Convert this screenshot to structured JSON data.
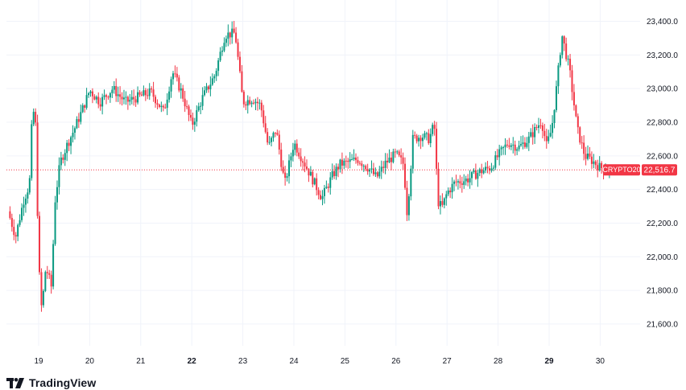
{
  "chart_data": {
    "type": "candlestick",
    "symbol": "CRYPTO20",
    "last_price": "22,516.7",
    "last_value": 22516.7,
    "ylim": [
      21480,
      23460
    ],
    "x_labels": [
      {
        "label": "19",
        "day": 19,
        "bold": false
      },
      {
        "label": "20",
        "day": 20,
        "bold": false
      },
      {
        "label": "21",
        "day": 21,
        "bold": false
      },
      {
        "label": "22",
        "day": 22,
        "bold": true
      },
      {
        "label": "23",
        "day": 23,
        "bold": false
      },
      {
        "label": "24",
        "day": 24,
        "bold": false
      },
      {
        "label": "25",
        "day": 25,
        "bold": false
      },
      {
        "label": "26",
        "day": 26,
        "bold": false
      },
      {
        "label": "27",
        "day": 27,
        "bold": false
      },
      {
        "label": "28",
        "day": 28,
        "bold": false
      },
      {
        "label": "29",
        "day": 29,
        "bold": true
      },
      {
        "label": "30",
        "day": 30,
        "bold": false
      }
    ],
    "y_labels": [
      {
        "label": "23,400.0",
        "value": 23400
      },
      {
        "label": "23,200.0",
        "value": 23200
      },
      {
        "label": "23,000.0",
        "value": 23000
      },
      {
        "label": "22,800.0",
        "value": 22800
      },
      {
        "label": "22,600.0",
        "value": 22600
      },
      {
        "label": "22,400.0",
        "value": 22400
      },
      {
        "label": "22,200.0",
        "value": 22200
      },
      {
        "label": "22,000.0",
        "value": 22000
      },
      {
        "label": "21,800.0",
        "value": 21800
      },
      {
        "label": "21,600.0",
        "value": 21600
      }
    ],
    "day_range": [
      18.4,
      30.6
    ],
    "series_path": [
      [
        18.4,
        22270
      ],
      [
        18.55,
        22120
      ],
      [
        18.7,
        22330
      ],
      [
        18.82,
        22430
      ],
      [
        18.88,
        22900
      ],
      [
        18.94,
        22780
      ],
      [
        19.0,
        21960
      ],
      [
        19.06,
        21680
      ],
      [
        19.14,
        21940
      ],
      [
        19.25,
        21820
      ],
      [
        19.32,
        22330
      ],
      [
        19.42,
        22560
      ],
      [
        19.55,
        22660
      ],
      [
        19.7,
        22760
      ],
      [
        19.85,
        22870
      ],
      [
        20.0,
        22990
      ],
      [
        20.2,
        22920
      ],
      [
        20.45,
        23000
      ],
      [
        20.7,
        22920
      ],
      [
        20.95,
        22950
      ],
      [
        21.2,
        22980
      ],
      [
        21.45,
        22860
      ],
      [
        21.62,
        23100
      ],
      [
        21.8,
        22980
      ],
      [
        22.0,
        22780
      ],
      [
        22.2,
        22940
      ],
      [
        22.45,
        23080
      ],
      [
        22.65,
        23320
      ],
      [
        22.85,
        23330
      ],
      [
        23.0,
        22920
      ],
      [
        23.2,
        22940
      ],
      [
        23.35,
        22900
      ],
      [
        23.5,
        22650
      ],
      [
        23.65,
        22760
      ],
      [
        23.82,
        22430
      ],
      [
        24.0,
        22680
      ],
      [
        24.2,
        22560
      ],
      [
        24.35,
        22470
      ],
      [
        24.55,
        22350
      ],
      [
        24.75,
        22480
      ],
      [
        24.9,
        22550
      ],
      [
        25.05,
        22560
      ],
      [
        25.25,
        22580
      ],
      [
        25.45,
        22530
      ],
      [
        25.62,
        22470
      ],
      [
        25.8,
        22560
      ],
      [
        26.0,
        22610
      ],
      [
        26.15,
        22550
      ],
      [
        26.22,
        22250
      ],
      [
        26.33,
        22700
      ],
      [
        26.5,
        22720
      ],
      [
        26.65,
        22700
      ],
      [
        26.75,
        22790
      ],
      [
        26.82,
        22330
      ],
      [
        26.9,
        22290
      ],
      [
        27.0,
        22380
      ],
      [
        27.15,
        22440
      ],
      [
        27.4,
        22460
      ],
      [
        27.6,
        22500
      ],
      [
        27.85,
        22530
      ],
      [
        28.0,
        22600
      ],
      [
        28.2,
        22680
      ],
      [
        28.4,
        22650
      ],
      [
        28.6,
        22700
      ],
      [
        28.85,
        22810
      ],
      [
        28.95,
        22660
      ],
      [
        29.05,
        22760
      ],
      [
        29.15,
        23020
      ],
      [
        29.25,
        23320
      ],
      [
        29.4,
        23110
      ],
      [
        29.55,
        22760
      ],
      [
        29.7,
        22600
      ],
      [
        29.85,
        22570
      ],
      [
        30.0,
        22530
      ],
      [
        30.2,
        22517
      ]
    ]
  }
}
